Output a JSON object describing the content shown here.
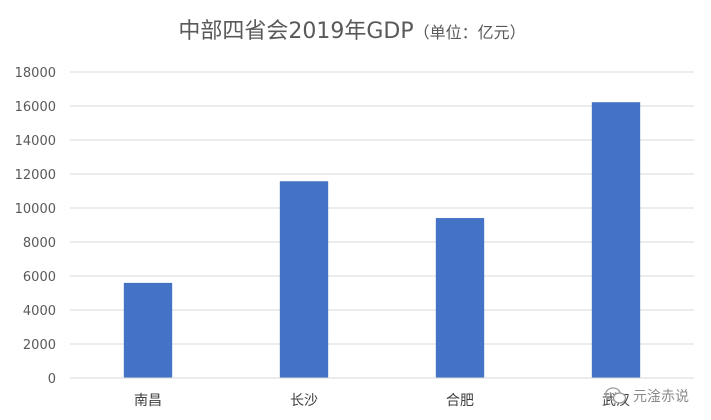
{
  "chart_data": {
    "type": "bar",
    "title": "中部四省会2019年GDP",
    "subtitle": "（单位：亿元）",
    "xlabel": "",
    "ylabel": "",
    "categories": [
      "南昌",
      "长沙",
      "合肥",
      "武汉"
    ],
    "values": [
      5596,
      11574,
      9409,
      16223
    ],
    "ylim": [
      0,
      18000
    ],
    "yticks": [
      0,
      2000,
      4000,
      6000,
      8000,
      10000,
      12000,
      14000,
      16000,
      18000
    ],
    "grid": true,
    "legend": "none",
    "bar_color": "#4472C4",
    "grid_color": "#d9d9d9"
  },
  "watermark": {
    "text": "元淦赤说",
    "icon": "wechat-icon"
  }
}
